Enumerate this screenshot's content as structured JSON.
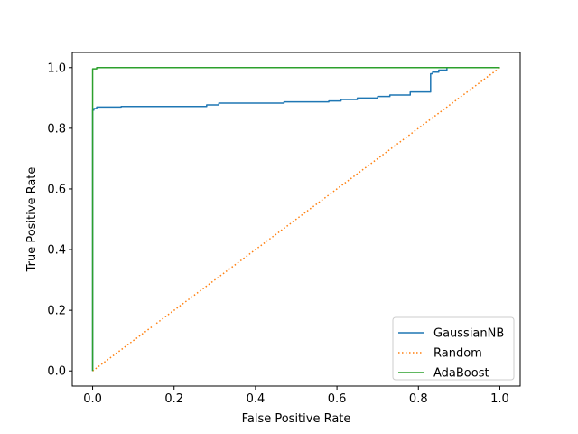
{
  "chart_data": {
    "type": "line",
    "title": "",
    "xlabel": "False Positive Rate",
    "ylabel": "True Positive Rate",
    "xlim": [
      -0.05,
      1.05
    ],
    "ylim": [
      -0.05,
      1.05
    ],
    "xticks": [
      0.0,
      0.2,
      0.4,
      0.6,
      0.8,
      1.0
    ],
    "yticks": [
      0.0,
      0.2,
      0.4,
      0.6,
      0.8,
      1.0
    ],
    "xtick_labels": [
      "0.0",
      "0.2",
      "0.4",
      "0.6",
      "0.8",
      "1.0"
    ],
    "ytick_labels": [
      "0.0",
      "0.2",
      "0.4",
      "0.6",
      "0.8",
      "1.0"
    ],
    "grid": false,
    "legend_position": "lower-right",
    "series": [
      {
        "name": "GaussianNB",
        "color": "#1f77b4",
        "style": "solid",
        "x": [
          0.0,
          0.0,
          0.003,
          0.003,
          0.01,
          0.01,
          0.07,
          0.07,
          0.28,
          0.28,
          0.31,
          0.31,
          0.47,
          0.47,
          0.58,
          0.58,
          0.61,
          0.61,
          0.65,
          0.65,
          0.7,
          0.7,
          0.73,
          0.73,
          0.78,
          0.78,
          0.83,
          0.83,
          0.835,
          0.835,
          0.85,
          0.85,
          0.87,
          0.87,
          1.0
        ],
        "y": [
          0.0,
          0.86,
          0.86,
          0.865,
          0.865,
          0.87,
          0.87,
          0.872,
          0.872,
          0.877,
          0.877,
          0.883,
          0.883,
          0.887,
          0.887,
          0.89,
          0.89,
          0.895,
          0.895,
          0.9,
          0.9,
          0.905,
          0.905,
          0.91,
          0.91,
          0.92,
          0.92,
          0.98,
          0.98,
          0.985,
          0.985,
          0.992,
          0.992,
          1.0,
          1.0
        ]
      },
      {
        "name": "Random",
        "color": "#ff7f0e",
        "style": "dotted",
        "x": [
          0.0,
          1.0
        ],
        "y": [
          0.0,
          1.0
        ]
      },
      {
        "name": "AdaBoost",
        "color": "#2ca02c",
        "style": "solid",
        "x": [
          0.0,
          0.0,
          0.01,
          0.01,
          1.0
        ],
        "y": [
          0.0,
          0.996,
          0.996,
          1.0,
          1.0
        ]
      }
    ]
  }
}
